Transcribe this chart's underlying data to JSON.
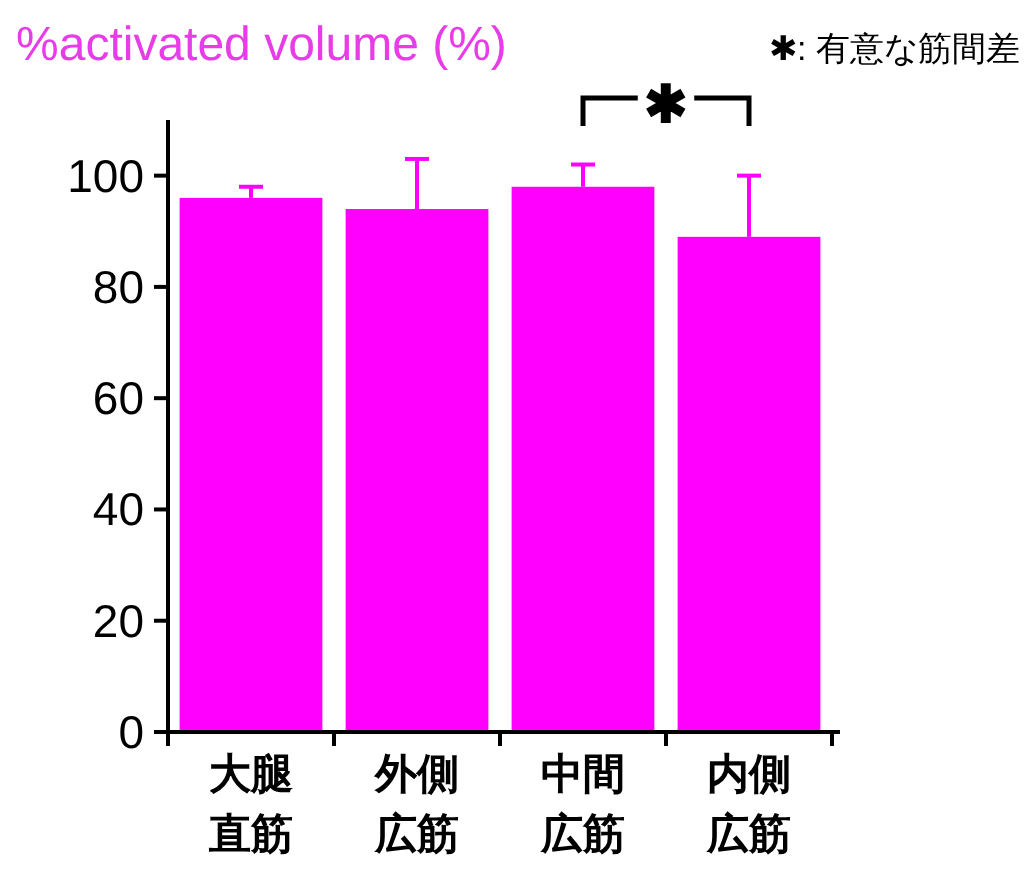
{
  "chart_data": {
    "type": "bar",
    "ylabel": "%activated volume (%)",
    "categories": [
      "大腿直筋",
      "外側広筋",
      "中間広筋",
      "内側広筋"
    ],
    "values": [
      96,
      94,
      98,
      89
    ],
    "color": "#ff00ff",
    "errors": [
      [
        96,
        98
      ],
      [
        94,
        103
      ],
      [
        98,
        102
      ],
      [
        89,
        100
      ]
    ],
    "ylim": [
      0,
      110
    ],
    "yticks": [
      0,
      20,
      40,
      60,
      80,
      100
    ],
    "grid": false,
    "annotations": [
      "✱: 有意な筋間差",
      "✱"
    ]
  }
}
